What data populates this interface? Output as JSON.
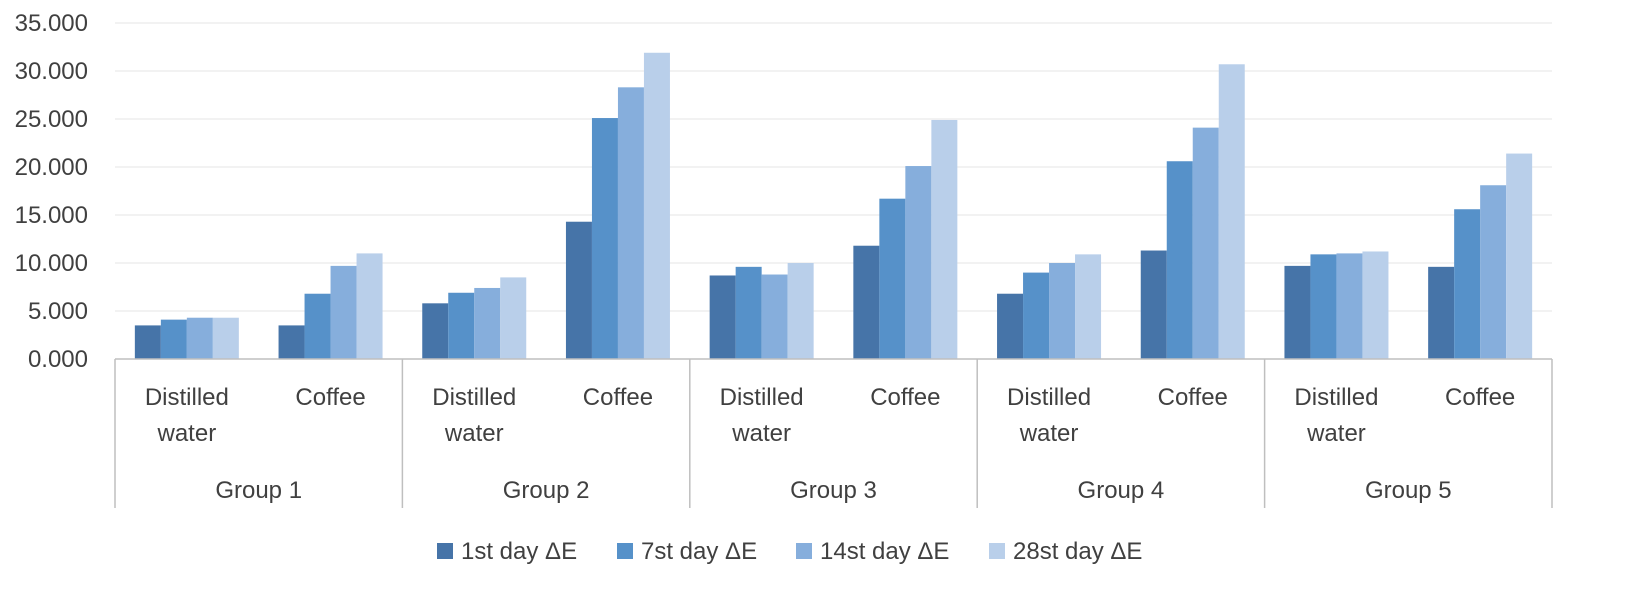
{
  "chart_data": {
    "type": "bar",
    "title": "",
    "xlabel": "",
    "ylabel": "",
    "ylim": [
      0,
      35
    ],
    "yticks": [
      0,
      5,
      10,
      15,
      20,
      25,
      30,
      35
    ],
    "ytick_labels": [
      "0.000",
      "5.000",
      "10.000",
      "15.000",
      "20.000",
      "25.000",
      "30.000",
      "35.000"
    ],
    "grid": true,
    "legend_position": "bottom",
    "groups": [
      {
        "label": "Group 1",
        "categories": [
          {
            "label_lines": [
              "Distilled",
              "water"
            ]
          },
          {
            "label_lines": [
              "Coffee"
            ]
          }
        ]
      },
      {
        "label": "Group 2",
        "categories": [
          {
            "label_lines": [
              "Distilled",
              "water"
            ]
          },
          {
            "label_lines": [
              "Coffee"
            ]
          }
        ]
      },
      {
        "label": "Group 3",
        "categories": [
          {
            "label_lines": [
              "Distilled",
              "water"
            ]
          },
          {
            "label_lines": [
              "Coffee"
            ]
          }
        ]
      },
      {
        "label": "Group 4",
        "categories": [
          {
            "label_lines": [
              "Distilled",
              "water"
            ]
          },
          {
            "label_lines": [
              "Coffee"
            ]
          }
        ]
      },
      {
        "label": "Group 5",
        "categories": [
          {
            "label_lines": [
              "Distilled",
              "water"
            ]
          },
          {
            "label_lines": [
              "Coffee"
            ]
          }
        ]
      }
    ],
    "series": [
      {
        "name": "1st day ΔE",
        "color": "#4674a8",
        "values": [
          3.5,
          3.5,
          5.8,
          14.3,
          8.7,
          11.8,
          6.8,
          11.3,
          9.7,
          9.6
        ]
      },
      {
        "name": "7st day ΔE",
        "color": "#5691c9",
        "values": [
          4.1,
          6.8,
          6.9,
          25.1,
          9.6,
          16.7,
          9.0,
          20.6,
          10.9,
          15.6
        ]
      },
      {
        "name": "14st day ΔE",
        "color": "#86aedc",
        "values": [
          4.3,
          9.7,
          7.4,
          28.3,
          8.8,
          20.1,
          10.0,
          24.1,
          11.0,
          18.1
        ]
      },
      {
        "name": "28st day ΔE",
        "color": "#b9cfea",
        "values": [
          4.3,
          11.0,
          8.5,
          31.9,
          10.0,
          24.9,
          10.9,
          30.7,
          11.2,
          21.4
        ]
      }
    ]
  }
}
